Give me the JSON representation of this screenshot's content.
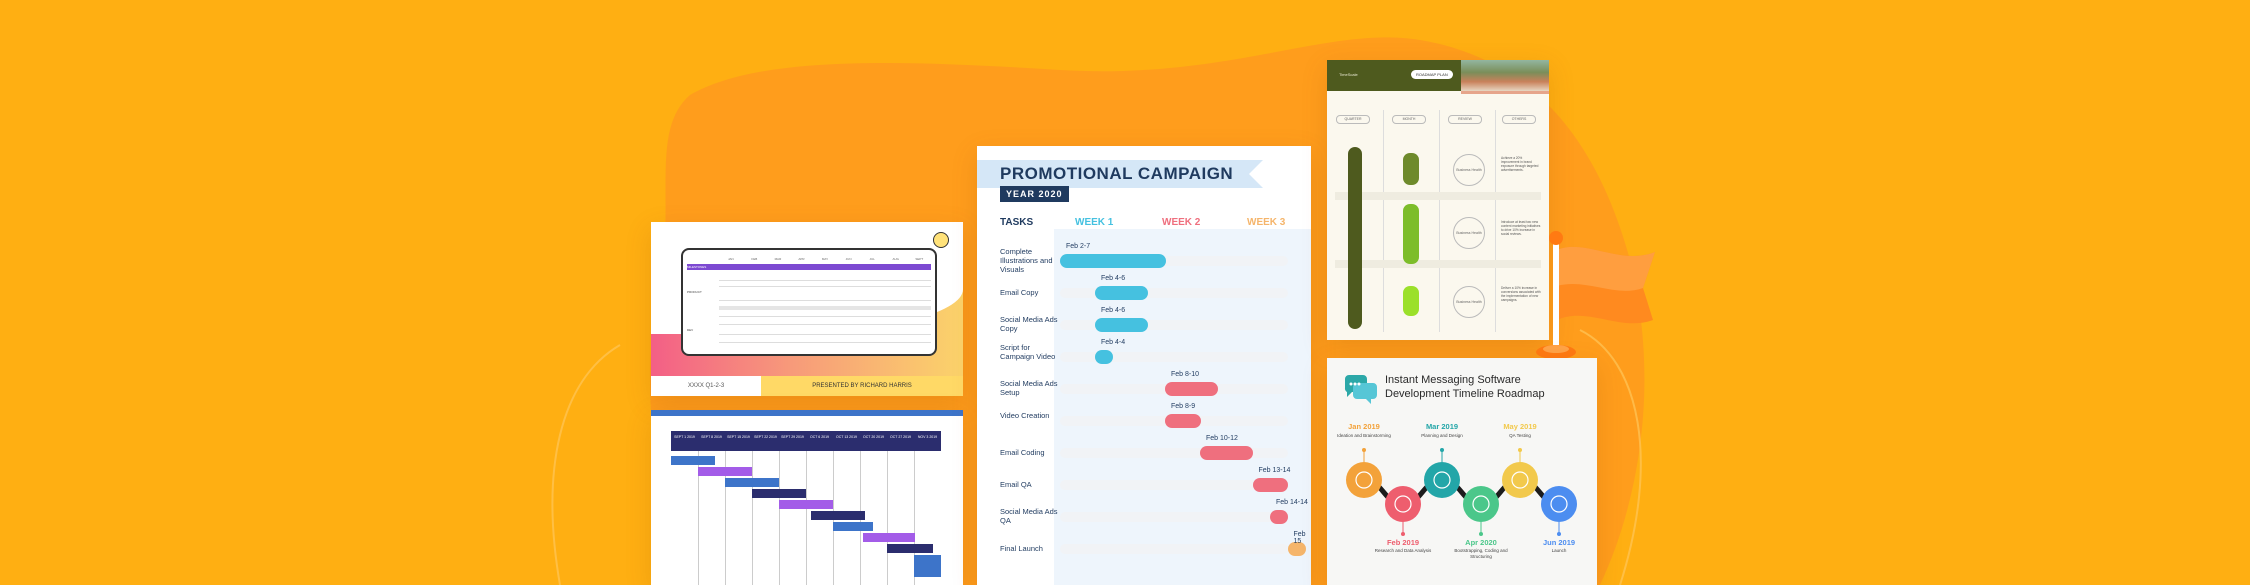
{
  "colors": {
    "background": "#FFAF12",
    "blob": "#FF9A1E",
    "week1": "#45C1E0",
    "week2": "#EF6F7E",
    "week3": "#F5B56B",
    "navy": "#1F3A5F",
    "olive": "#4E5A1E",
    "lime": "#7DBD2A",
    "flag": "#FF8A1F"
  },
  "card1": {
    "months": [
      "JAN",
      "FEB",
      "MAR",
      "APR",
      "MAY",
      "JUN",
      "JUL",
      "AUG",
      "SEPT"
    ],
    "rows": [
      "MILESTONES",
      "PRODUCT",
      "DEV"
    ],
    "footer_left": "XXXX Q1-2-3",
    "footer_right": "PRESENTED BY RICHARD HARRIS"
  },
  "card2": {
    "headers": [
      "SEPT 1 2019",
      "SEPT 8 2019",
      "SEPT 15 2019",
      "SEPT 22 2019",
      "SEPT 29 2019",
      "OCT 6 2019",
      "OCT 13 2019",
      "OCT 20 2019",
      "OCT 27 2019",
      "NOV 3 2019"
    ]
  },
  "campaign": {
    "title": "PROMOTIONAL CAMPAIGN",
    "year": "YEAR 2020",
    "tasks_header": "TASKS",
    "weeks": [
      "WEEK 1",
      "WEEK 2",
      "WEEK 3"
    ],
    "tasks": [
      {
        "name": "Complete Illustrations and Visuals",
        "label": "Feb 2-7",
        "start": 2,
        "end": 7,
        "week": 1
      },
      {
        "name": "Email Copy",
        "label": "Feb 4-6",
        "start": 4,
        "end": 6,
        "week": 1
      },
      {
        "name": "Social Media Ads Copy",
        "label": "Feb 4-6",
        "start": 4,
        "end": 6,
        "week": 1
      },
      {
        "name": "Script for Campaign Video",
        "label": "Feb 4-4",
        "start": 4,
        "end": 4,
        "week": 1
      },
      {
        "name": "Social Media Ads Setup",
        "label": "Feb 8-10",
        "start": 8,
        "end": 10,
        "week": 2
      },
      {
        "name": "Video Creation",
        "label": "Feb 8-9",
        "start": 8,
        "end": 9,
        "week": 2
      },
      {
        "name": "Email Coding",
        "label": "Feb 10-12",
        "start": 10,
        "end": 12,
        "week": 2
      },
      {
        "name": "Email QA",
        "label": "Feb 13-14",
        "start": 13,
        "end": 14,
        "week": 2
      },
      {
        "name": "Social Media Ads QA",
        "label": "Feb 14-14",
        "start": 14,
        "end": 14,
        "week": 2
      },
      {
        "name": "Final Launch",
        "label": "Feb 15",
        "start": 15,
        "end": 15,
        "week": 3
      }
    ]
  },
  "roadmap": {
    "brand": "TimeScale",
    "badge": "ROADMAP PLAN",
    "columns": [
      "QUARTER",
      "MONTH",
      "REVIEW",
      "OTHERS"
    ],
    "circle_text": "Business Health",
    "notes": [
      "Achieve a 20% improvement in brand exposure through targeted advertisements.",
      "Introduce at least two new content marketing initiatives to drive 10% increase in social reviews.",
      "Deliver a 10% increase in conversions associated with the implementation of new campaigns."
    ]
  },
  "timeline": {
    "title": "Instant Messaging Software Development Timeline Roadmap",
    "milestones": [
      {
        "month": "Jan 2019",
        "desc": "Ideation and Brainstorming",
        "color": "#F3A23A",
        "pos": "top"
      },
      {
        "month": "Feb 2019",
        "desc": "Research and Data Analysis",
        "color": "#EE5E6E",
        "pos": "bottom"
      },
      {
        "month": "Mar 2019",
        "desc": "Planning and Design",
        "color": "#23A6A8",
        "pos": "top"
      },
      {
        "month": "Apr 2020",
        "desc": "Bootstrapping, Coding and Structuring",
        "color": "#4BC78A",
        "pos": "bottom"
      },
      {
        "month": "May 2019",
        "desc": "QA Testing",
        "color": "#F2C94C",
        "pos": "top"
      },
      {
        "month": "Jun 2019",
        "desc": "Launch",
        "color": "#4C8DF0",
        "pos": "bottom"
      }
    ]
  }
}
